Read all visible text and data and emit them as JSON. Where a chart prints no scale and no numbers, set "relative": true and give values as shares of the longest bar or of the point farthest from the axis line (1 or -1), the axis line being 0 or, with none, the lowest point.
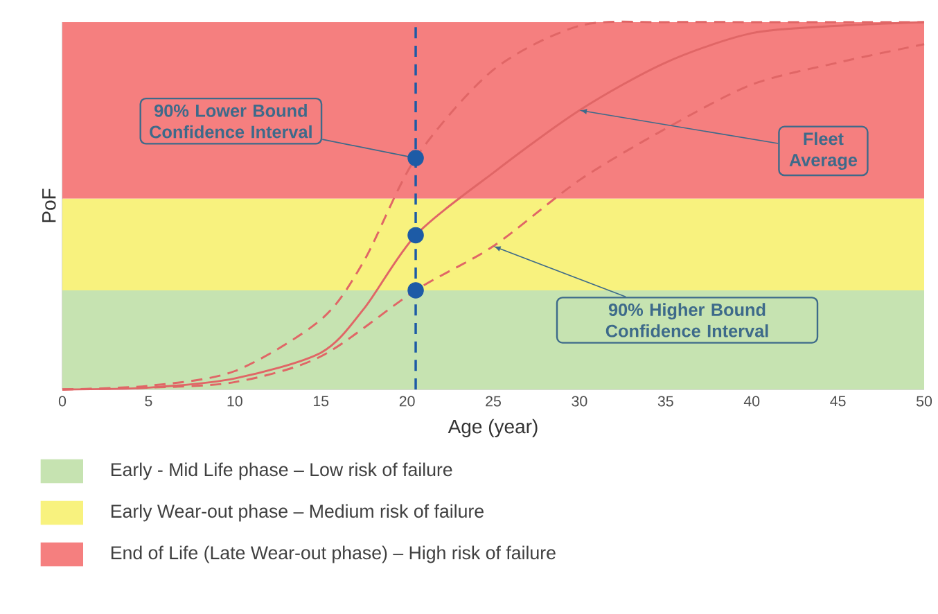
{
  "chart_data": {
    "type": "line",
    "relative": true,
    "xlabel": "Age (year)",
    "ylabel": "PoF",
    "xlim": [
      0,
      50
    ],
    "xticks": [
      0,
      5,
      10,
      15,
      20,
      25,
      30,
      35,
      40,
      45,
      50
    ],
    "tick_labels": "x",
    "legend": "bottom",
    "grid": false,
    "series": [
      {
        "color": "#e06666",
        "line_style": "solid",
        "x": [
          0,
          5,
          10,
          15,
          17.5,
          20.5,
          25,
          30,
          35,
          40,
          45,
          50
        ],
        "values": [
          0,
          0.005,
          0.03,
          0.1,
          0.22,
          0.42,
          0.59,
          0.76,
          0.89,
          0.97,
          0.99,
          1.0
        ]
      },
      {
        "color": "#e06666",
        "line_style": "dashed",
        "x": [
          0,
          5,
          10,
          15,
          17.5,
          20.5,
          25,
          30,
          35,
          40,
          45,
          50
        ],
        "values": [
          0,
          0.01,
          0.05,
          0.19,
          0.35,
          0.63,
          0.87,
          0.99,
          1.0,
          1.0,
          1.0,
          1.0
        ]
      },
      {
        "color": "#e06666",
        "line_style": "dashed",
        "x": [
          0,
          5,
          10,
          15,
          20.5,
          25,
          30,
          35,
          40,
          45,
          50
        ],
        "values": [
          0,
          0.005,
          0.02,
          0.09,
          0.27,
          0.39,
          0.57,
          0.71,
          0.83,
          0.89,
          0.94
        ]
      },
      {
        "type": "scatter",
        "color": "#1d5ba6",
        "marker": "circle",
        "x": [
          20.5,
          20.5,
          20.5
        ],
        "values": [
          0.63,
          0.42,
          0.27
        ]
      }
    ],
    "ref_lines": [
      {
        "axis": "x",
        "value": 20.5,
        "color": "#1d5ba6",
        "line_style": "dashed"
      }
    ],
    "bands": [
      {
        "axis": "y",
        "from": 0,
        "to": 0.27,
        "color": "#c6e3b1",
        "label": "Early - Mid Life phase – Low risk of failure"
      },
      {
        "axis": "y",
        "from": 0.27,
        "to": 0.52,
        "color": "#f8f27e",
        "label": "Early Wear-out phase – Medium risk of failure"
      },
      {
        "axis": "y",
        "from": 0.52,
        "to": 1.0,
        "color": "#f57f7f",
        "label": "End of Life (Late Wear-out phase) – High risk of failure"
      }
    ],
    "annotations": [
      {
        "text": "90% Lower Bound Confidence Interval",
        "x": 20.5,
        "y": 0.63
      },
      {
        "text": "Fleet Average",
        "x": 30,
        "y": 0.76
      },
      {
        "text": "90% Higher Bound Confidence Interval",
        "x": 25,
        "y": 0.39
      }
    ]
  }
}
